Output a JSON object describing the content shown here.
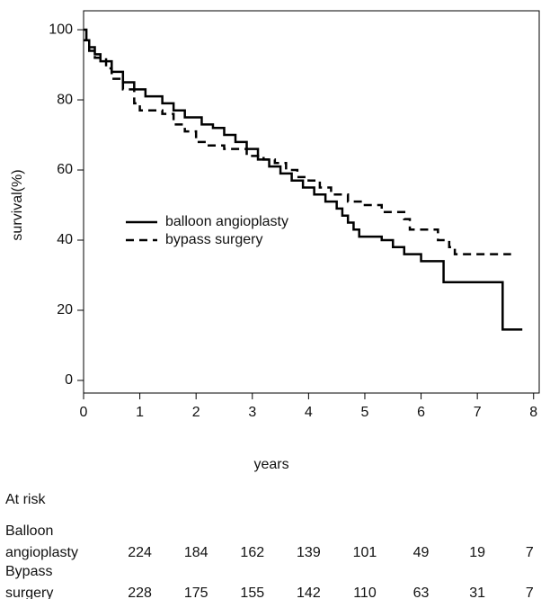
{
  "chart_data": {
    "type": "step",
    "xlabel": "years",
    "ylabel": "survival(%)",
    "xlim": [
      0,
      8.1
    ],
    "ylim": [
      -3.6,
      105.4
    ],
    "xticks": [
      0,
      1,
      2,
      3,
      4,
      5,
      6,
      7,
      8
    ],
    "yticks": [
      0,
      20,
      40,
      60,
      80,
      100
    ],
    "legend": "center-left",
    "series": [
      {
        "name": "balloon angioplasty",
        "color": "#000000",
        "dash": "solid",
        "x": [
          0,
          0.05,
          0.1,
          0.2,
          0.3,
          0.5,
          0.7,
          0.9,
          1.1,
          1.4,
          1.6,
          1.8,
          2.1,
          2.3,
          2.5,
          2.7,
          2.9,
          3.1,
          3.3,
          3.5,
          3.7,
          3.9,
          4.1,
          4.3,
          4.5,
          4.6,
          4.7,
          4.8,
          4.9,
          5.3,
          5.5,
          5.7,
          6.0,
          6.4,
          7.45,
          7.8
        ],
        "values": [
          100,
          97,
          95,
          93,
          91,
          88,
          85,
          83,
          81,
          79,
          77,
          75,
          73,
          72,
          70,
          68,
          66,
          63,
          61,
          59,
          57,
          55,
          53,
          51,
          49,
          47,
          45,
          43,
          41,
          40,
          38,
          36,
          34,
          28,
          14.5,
          14.5
        ]
      },
      {
        "name": "bypass surgery",
        "color": "#000000",
        "dash": "dashed",
        "x": [
          0,
          0.1,
          0.2,
          0.4,
          0.5,
          0.7,
          0.9,
          1.0,
          1.4,
          1.6,
          1.8,
          2.0,
          2.2,
          2.5,
          2.9,
          3.2,
          3.4,
          3.6,
          3.8,
          4.0,
          4.2,
          4.4,
          4.7,
          5.0,
          5.3,
          5.7,
          5.8,
          6.3,
          6.5,
          6.6,
          7.6
        ],
        "values": [
          97,
          94,
          92,
          89,
          86,
          83,
          79,
          77,
          76,
          73,
          71,
          68,
          67,
          66,
          64,
          63,
          62,
          60,
          58,
          57,
          55,
          53,
          51,
          50,
          48,
          46,
          43,
          40,
          38,
          36,
          36
        ]
      }
    ],
    "at_risk": {
      "title": "At risk",
      "rows": [
        {
          "label": [
            "Balloon",
            "angioplasty"
          ],
          "counts": [
            224,
            184,
            162,
            139,
            101,
            49,
            19,
            7
          ]
        },
        {
          "label": [
            "Bypass",
            "surgery"
          ],
          "counts": [
            228,
            175,
            155,
            142,
            110,
            63,
            31,
            7
          ]
        }
      ]
    }
  }
}
